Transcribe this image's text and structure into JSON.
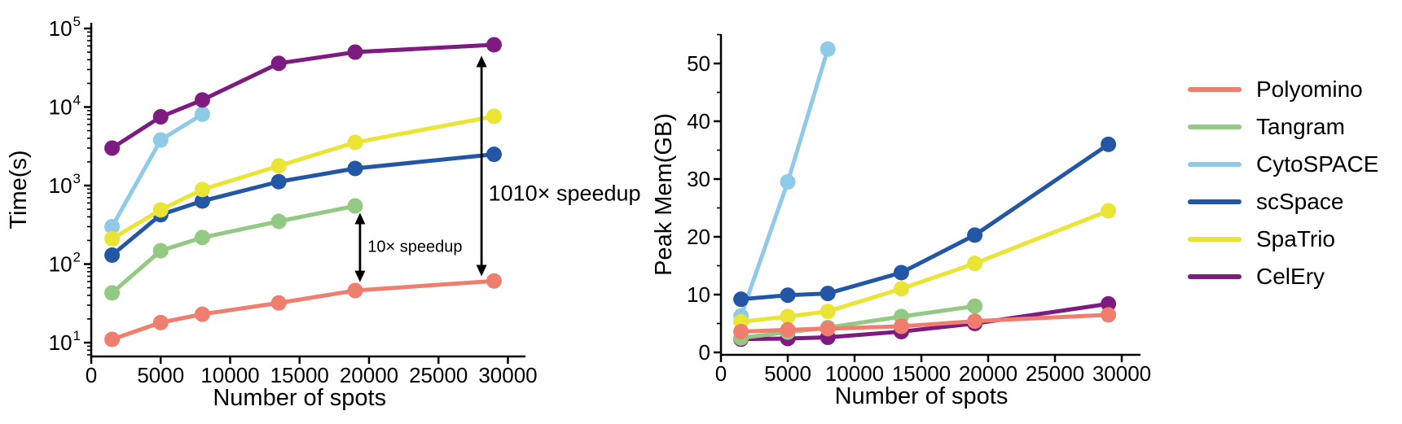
{
  "figure": {
    "background": "#ffffff",
    "text_color": "#000000"
  },
  "chart_data": [
    {
      "id": "runtime-benchmark",
      "type": "line",
      "title": "",
      "xlabel": "Number of spots",
      "ylabel": "Time(s)",
      "yscale": "log",
      "grid": false,
      "xlim": [
        0,
        31000
      ],
      "ylim": [
        10,
        100000
      ],
      "xticks": [
        0,
        5000,
        10000,
        15000,
        20000,
        25000,
        30000
      ],
      "ytick_exponents": [
        1,
        2,
        3,
        4,
        5
      ],
      "x": [
        1500,
        5000,
        8000,
        13500,
        19000,
        29000
      ],
      "series": [
        {
          "name": "Polyomino",
          "color": "#F07E6E",
          "values": [
            11,
            18,
            23,
            32,
            46,
            61
          ]
        },
        {
          "name": "Tangram",
          "color": "#93C983",
          "values": [
            43,
            148,
            218,
            350,
            550
          ]
        },
        {
          "name": "CytoSPACE",
          "color": "#8FCAE8",
          "values": [
            300,
            3800,
            8100
          ]
        },
        {
          "name": "scSpace",
          "color": "#2356A5",
          "values": [
            130,
            425,
            635,
            1120,
            1650,
            2500
          ]
        },
        {
          "name": "SpaTrio",
          "color": "#EAE435",
          "values": [
            210,
            490,
            890,
            1780,
            3540,
            7600
          ]
        },
        {
          "name": "CelEry",
          "color": "#7D1B80",
          "values": [
            3000,
            7500,
            12300,
            36000,
            50000,
            62000
          ]
        }
      ],
      "annotations": [
        {
          "type": "double-arrow",
          "x": 19350,
          "y_from": 59,
          "y_to": 450,
          "label": "10× speedup",
          "label_x": 19900,
          "label_y": 165,
          "label_size": 20
        },
        {
          "type": "double-arrow",
          "x": 28100,
          "y_from": 70,
          "y_to": 45000,
          "label": "1010× speedup",
          "label_x": 28600,
          "label_y": 800,
          "label_size": 27
        }
      ]
    },
    {
      "id": "memory-benchmark",
      "type": "line",
      "title": "",
      "xlabel": "Number of spots",
      "ylabel": "Peak Mem(GB)",
      "yscale": "linear",
      "grid": false,
      "xlim": [
        0,
        31000
      ],
      "ylim": [
        0,
        55
      ],
      "xticks": [
        0,
        5000,
        10000,
        15000,
        20000,
        25000,
        30000
      ],
      "yticks": [
        0,
        10,
        20,
        30,
        40,
        50
      ],
      "minor_tick_step": 5,
      "x": [
        1500,
        5000,
        8000,
        13500,
        19000,
        29000
      ],
      "series": [
        {
          "name": "Polyomino",
          "color": "#F07E6E",
          "values": [
            3.6,
            3.9,
            4.1,
            4.5,
            5.4,
            6.5
          ]
        },
        {
          "name": "Tangram",
          "color": "#93C983",
          "values": [
            2.5,
            3.5,
            4.3,
            6.2,
            8.0
          ]
        },
        {
          "name": "CytoSPACE",
          "color": "#8FCAE8",
          "values": [
            6.3,
            29.5,
            52.5
          ]
        },
        {
          "name": "scSpace",
          "color": "#2356A5",
          "values": [
            9.2,
            9.9,
            10.2,
            13.8,
            20.3,
            36.0
          ]
        },
        {
          "name": "SpaTrio",
          "color": "#EAE435",
          "values": [
            5.3,
            6.2,
            7.1,
            11.0,
            15.4,
            24.5
          ]
        },
        {
          "name": "CelEry",
          "color": "#7D1B80",
          "values": [
            2.3,
            2.4,
            2.6,
            3.6,
            5.0,
            8.4
          ]
        }
      ],
      "annotations": []
    }
  ],
  "legend": {
    "position": "right"
  }
}
